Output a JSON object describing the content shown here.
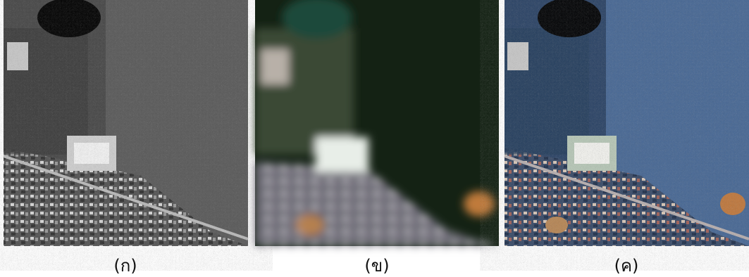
{
  "panels": [
    {
      "caption": "(ก)"
    },
    {
      "caption": "(ข)"
    },
    {
      "caption": "(ค)"
    }
  ]
}
